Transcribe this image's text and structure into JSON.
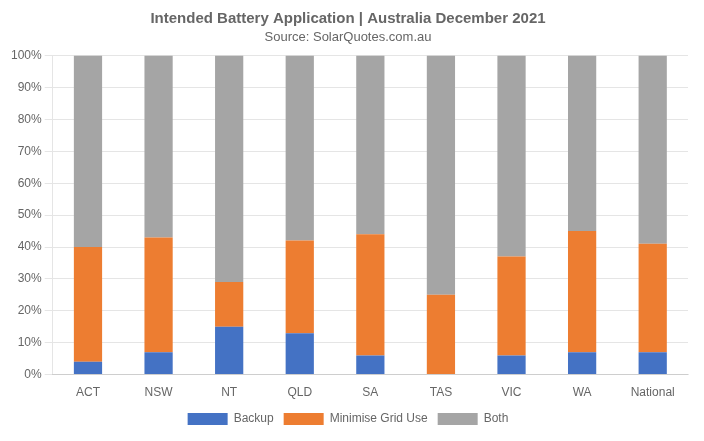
{
  "chart_data": {
    "type": "bar",
    "stacked": true,
    "title": "Intended Battery Application | Australia December 2021",
    "subtitle": "Source: SolarQuotes.com.au",
    "categories": [
      "ACT",
      "NSW",
      "NT",
      "QLD",
      "SA",
      "TAS",
      "VIC",
      "WA",
      "National"
    ],
    "series": [
      {
        "name": "Backup",
        "color": "#4472c4",
        "values": [
          4,
          7,
          15,
          13,
          6,
          0,
          6,
          7,
          7
        ]
      },
      {
        "name": "Minimise Grid Use",
        "color": "#ed7d31",
        "values": [
          36,
          36,
          14,
          29,
          38,
          25,
          31,
          38,
          34
        ]
      },
      {
        "name": "Both",
        "color": "#a5a5a5",
        "values": [
          60,
          57,
          71,
          58,
          56,
          75,
          63,
          55,
          59
        ]
      }
    ],
    "ylim": [
      0,
      100
    ],
    "yticks": [
      {
        "value": 0,
        "label": "0%"
      },
      {
        "value": 10,
        "label": "10%"
      },
      {
        "value": 20,
        "label": "20%"
      },
      {
        "value": 30,
        "label": "30%"
      },
      {
        "value": 40,
        "label": "40%"
      },
      {
        "value": 50,
        "label": "50%"
      },
      {
        "value": 60,
        "label": "60%"
      },
      {
        "value": 70,
        "label": "70%"
      },
      {
        "value": 80,
        "label": "80%"
      },
      {
        "value": 90,
        "label": "90%"
      },
      {
        "value": 100,
        "label": "100%"
      }
    ],
    "grid": true,
    "legend": "bottom"
  }
}
